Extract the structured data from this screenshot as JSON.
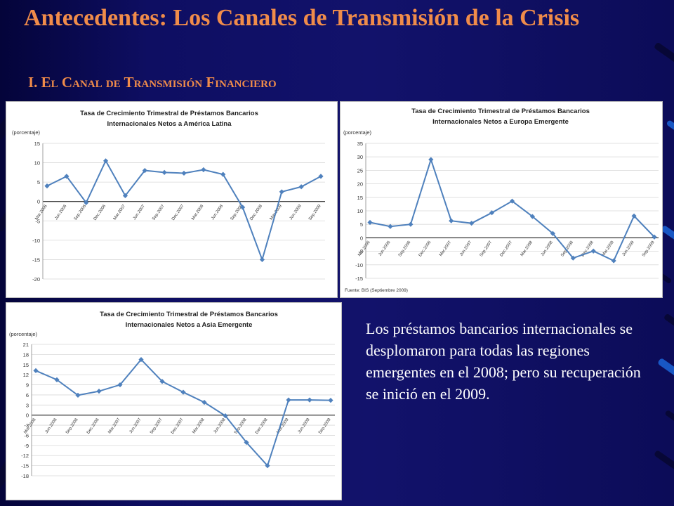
{
  "slide": {
    "title": "Antecedentes: Los Canales de Transmisión de la Crisis",
    "subtitle": "I. El Canal de Transmisión Financiero",
    "body": "Los préstamos bancarios internacionales se desplomaron para todas las regiones emergentes en el 2008; pero su recuperación se inició en el 2009."
  },
  "colors": {
    "background": "#0d0d5e",
    "title": "#f08c4a",
    "body_text": "#ffffff",
    "line": "#4f81bd",
    "grid": "#d9d9d9"
  },
  "chart_data": [
    {
      "type": "line",
      "title_lines": [
        "Tasa de Crecimiento Trimestral de Préstamos Bancarios",
        "Internacionales Netos a América Latina"
      ],
      "ylabel": "(porcentaje)",
      "categories": [
        "Mar.2006",
        "Jun.2006",
        "Sep.2006",
        "Dec.2006",
        "Mar.2007",
        "Jun.2007",
        "Sep.2007",
        "Dec.2007",
        "Mar.2008",
        "Jun.2008",
        "Sep.2008",
        "Dec.2008",
        "Mar.2009",
        "Jun.2009",
        "Sep.2009"
      ],
      "values": [
        4.0,
        6.5,
        -0.3,
        10.5,
        1.5,
        8.0,
        7.5,
        7.3,
        8.2,
        7.0,
        -1.5,
        -15.0,
        2.5,
        3.8,
        6.5
      ],
      "ylim": [
        -20,
        15
      ],
      "yticks": [
        15,
        10,
        5,
        0,
        -5,
        -10,
        -15,
        -20
      ],
      "note": "",
      "grid": true
    },
    {
      "type": "line",
      "title_lines": [
        "Tasa de Crecimiento Trimestral de Préstamos Bancarios",
        "Internacionales Netos a Europa Emergente"
      ],
      "ylabel": "(porcentaje)",
      "categories": [
        "Mar.2006",
        "Jun.2006",
        "Sep.2006",
        "Dec.2006",
        "Mar.2007",
        "Jun.2007",
        "Sep.2007",
        "Dec.2007",
        "Mar.2008",
        "Jun.2008",
        "Sep.2008",
        "Dec.2008",
        "Mar.2009",
        "Jun.2009",
        "Sep.2009"
      ],
      "values": [
        5.7,
        4.2,
        5.0,
        29.0,
        6.3,
        5.4,
        9.3,
        13.6,
        7.9,
        1.6,
        -7.5,
        -4.9,
        -8.5,
        8.1,
        0.3
      ],
      "ylim": [
        -15,
        35
      ],
      "yticks": [
        35,
        30,
        25,
        20,
        15,
        10,
        5,
        0,
        -5,
        -10,
        -15
      ],
      "note": "Fuente: BIS (Septiembre 2009)",
      "grid": true
    },
    {
      "type": "line",
      "title_lines": [
        "Tasa de Crecimiento Trimestral de Préstamos Bancarios",
        "Internacionales Netos a Asia Emergente"
      ],
      "ylabel": "(porcentaje)",
      "categories": [
        "Mar.2006",
        "Jun.2006",
        "Sep.2006",
        "Dec.2006",
        "Mar.2007",
        "Jun.2007",
        "Sep.2007",
        "Dec.2007",
        "Mar.2008",
        "Jun.2008",
        "Sep.2008",
        "Dec.2008",
        "Mar.2009",
        "Jun.2009",
        "Sep.2009"
      ],
      "values": [
        13.2,
        10.5,
        5.9,
        7.1,
        9.0,
        16.5,
        10.0,
        6.8,
        3.8,
        -0.2,
        -8.1,
        -15.0,
        4.5,
        4.5,
        4.4
      ],
      "ylim": [
        -18,
        21
      ],
      "yticks": [
        21,
        18,
        15,
        12,
        9,
        6,
        3,
        0,
        -3,
        -6,
        -9,
        -12,
        -15,
        -18
      ],
      "note": "",
      "grid": true
    }
  ]
}
